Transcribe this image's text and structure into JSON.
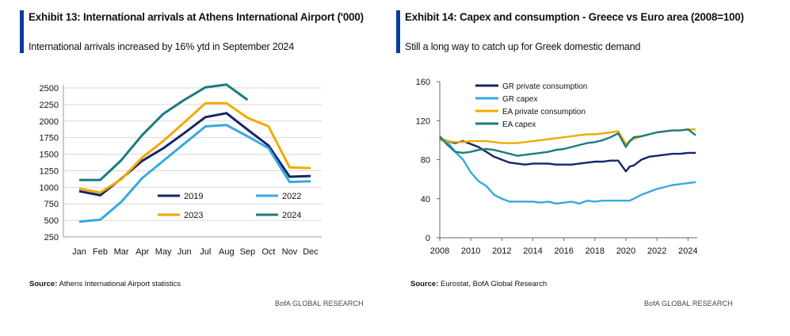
{
  "left": {
    "title": "Exhibit 13: International arrivals at Athens International Airport ('000)",
    "subtitle": "International arrivals increased by 16% ytd in September 2024",
    "source_label": "Source:",
    "source_text": "Athens International Airport statistics",
    "brand": "BofA GLOBAL RESEARCH"
  },
  "right": {
    "title": "Exhibit 14: Capex and consumption - Greece vs Euro area (2008=100)",
    "subtitle": "Still a long way to catch up for Greek domestic demand",
    "source_label": "Source:",
    "source_text": "Eurostat, BofA Global Research",
    "brand": "BofA GLOBAL RESEARCH"
  },
  "chart_data": [
    {
      "type": "line",
      "title": "Exhibit 13: International arrivals at Athens International Airport ('000)",
      "categories": [
        "Jan",
        "Feb",
        "Mar",
        "Apr",
        "May",
        "Jun",
        "Jul",
        "Aug",
        "Sep",
        "Oct",
        "Nov",
        "Dec"
      ],
      "ylim": [
        250,
        2500
      ],
      "yticks": [
        250,
        500,
        750,
        1000,
        1250,
        1500,
        1750,
        2000,
        2250,
        2500
      ],
      "grid": true,
      "legend": "inside-bottom",
      "series": [
        {
          "name": "2019",
          "color": "#14256b",
          "values": [
            940,
            880,
            1130,
            1400,
            1590,
            1820,
            2060,
            2120,
            1870,
            1630,
            1160,
            1170
          ]
        },
        {
          "name": "2022",
          "color": "#36a9e1",
          "values": [
            480,
            510,
            780,
            1140,
            1400,
            1660,
            1920,
            1940,
            1770,
            1590,
            1080,
            1090
          ]
        },
        {
          "name": "2023",
          "color": "#f2a900",
          "values": [
            980,
            920,
            1120,
            1450,
            1700,
            1980,
            2270,
            2270,
            2050,
            1920,
            1300,
            1290
          ]
        },
        {
          "name": "2024",
          "color": "#1b7b7e",
          "values": [
            1110,
            1110,
            1410,
            1790,
            2110,
            2320,
            2510,
            2550,
            2320,
            null,
            null,
            null
          ]
        }
      ]
    },
    {
      "type": "line",
      "title": "Exhibit 14: Capex and consumption - Greece vs Euro area (2008=100)",
      "x": [
        2008,
        2008.5,
        2009,
        2009.5,
        2010,
        2010.5,
        2011,
        2011.5,
        2012,
        2012.5,
        2013,
        2013.5,
        2014,
        2014.5,
        2015,
        2015.5,
        2016,
        2016.5,
        2017,
        2017.5,
        2018,
        2018.5,
        2019,
        2019.5,
        2020,
        2020.25,
        2020.5,
        2021,
        2021.5,
        2022,
        2022.5,
        2023,
        2023.5,
        2024,
        2024.5
      ],
      "xticks": [
        2008,
        2010,
        2012,
        2014,
        2016,
        2018,
        2020,
        2022,
        2024
      ],
      "xlim": [
        2008,
        2024.6
      ],
      "ylim": [
        0,
        160
      ],
      "yticks": [
        0,
        40,
        80,
        120,
        160
      ],
      "grid": false,
      "legend": "top-left",
      "series": [
        {
          "name": "GR private consumption",
          "color": "#14256b",
          "values": [
            101,
            99,
            97,
            99,
            96,
            93,
            88,
            83,
            80,
            77,
            76,
            75,
            76,
            76,
            76,
            75,
            75,
            75,
            76,
            77,
            78,
            78,
            79,
            79,
            68,
            73,
            74,
            80,
            83,
            84,
            85,
            86,
            86,
            87,
            87
          ]
        },
        {
          "name": "GR capex",
          "color": "#36a9e1",
          "values": [
            103,
            98,
            88,
            80,
            67,
            58,
            53,
            44,
            40,
            37,
            37,
            37,
            37,
            36,
            37,
            35,
            36,
            37,
            35,
            38,
            37,
            38,
            38,
            38,
            38,
            38,
            40,
            44,
            47,
            50,
            52,
            54,
            55,
            56,
            57
          ]
        },
        {
          "name": "EA private consumption",
          "color": "#f2a900",
          "values": [
            100,
            99,
            98,
            98,
            99,
            99,
            99,
            98,
            97,
            97,
            97,
            98,
            99,
            100,
            101,
            102,
            103,
            104,
            105,
            106,
            106,
            107,
            108,
            109,
            96,
            99,
            101,
            104,
            106,
            108,
            109,
            110,
            110,
            111,
            111
          ]
        },
        {
          "name": "EA capex",
          "color": "#1b7b7e",
          "values": [
            104,
            95,
            88,
            87,
            88,
            90,
            91,
            90,
            88,
            86,
            84,
            85,
            86,
            87,
            88,
            90,
            91,
            93,
            95,
            97,
            98,
            100,
            103,
            107,
            93,
            99,
            103,
            104,
            106,
            108,
            109,
            110,
            110,
            111,
            105
          ]
        }
      ]
    }
  ]
}
